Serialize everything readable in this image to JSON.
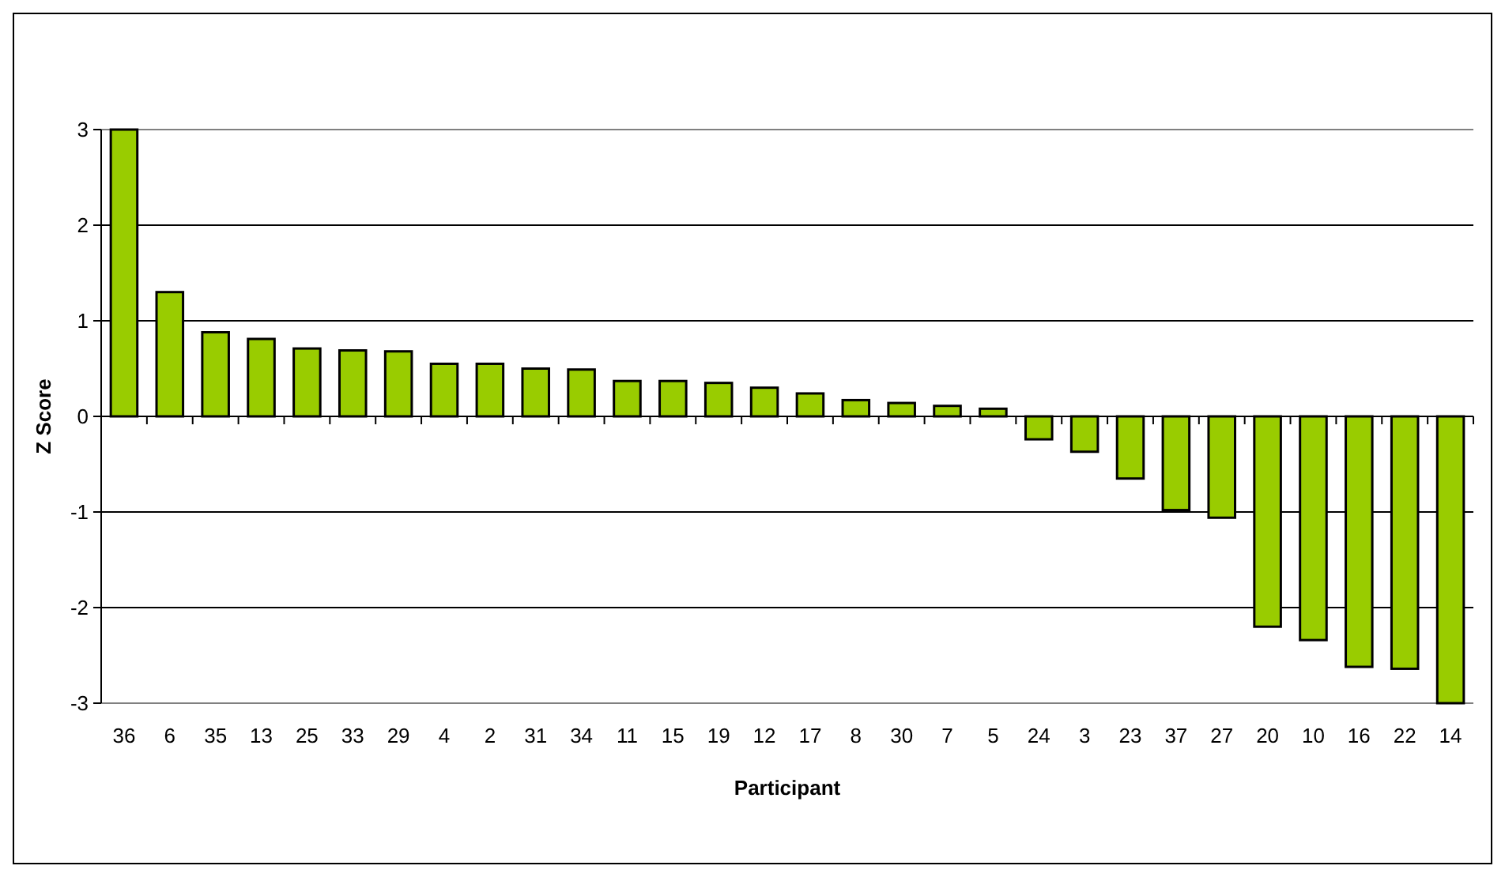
{
  "chart_data": {
    "type": "bar",
    "xlabel": "Participant",
    "ylabel": "Z Score",
    "categories": [
      "36",
      "6",
      "35",
      "13",
      "25",
      "33",
      "29",
      "4",
      "2",
      "31",
      "34",
      "11",
      "15",
      "19",
      "12",
      "17",
      "8",
      "30",
      "7",
      "5",
      "24",
      "3",
      "23",
      "37",
      "27",
      "20",
      "10",
      "16",
      "22",
      "14"
    ],
    "values": [
      3,
      1.3,
      0.88,
      0.81,
      0.71,
      0.69,
      0.68,
      0.55,
      0.55,
      0.5,
      0.49,
      0.37,
      0.37,
      0.35,
      0.3,
      0.24,
      0.17,
      0.14,
      0.11,
      0.08,
      -0.24,
      -0.37,
      -0.65,
      -0.98,
      -1.06,
      -2.2,
      -2.34,
      -2.62,
      -2.64,
      -3
    ],
    "color": "#99cc00",
    "ylim": [
      -3,
      3
    ],
    "yticks": [
      -3,
      -2,
      -1,
      0,
      1,
      2,
      3
    ],
    "grid": "y"
  }
}
